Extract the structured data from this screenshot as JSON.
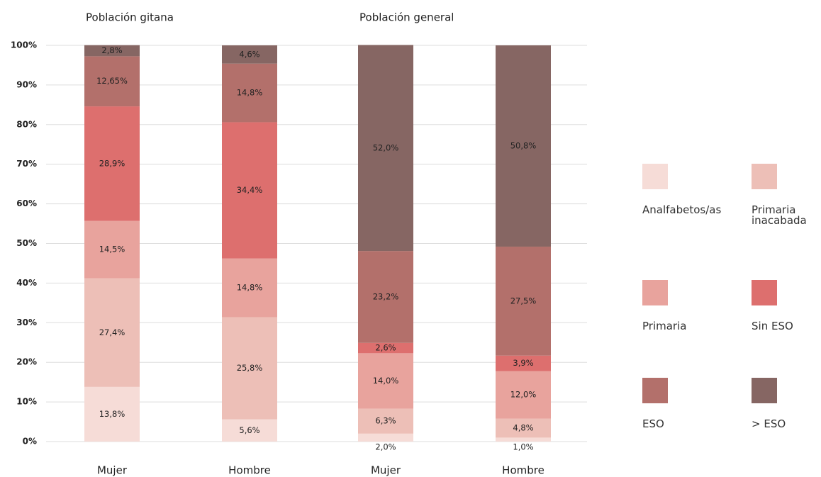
{
  "chart_data": {
    "type": "stacked_bar",
    "groups": [
      {
        "label": "Población gitana",
        "categories": [
          0,
          1
        ]
      },
      {
        "label": "Población general",
        "categories": [
          2,
          3
        ]
      }
    ],
    "categories": [
      "Mujer",
      "Hombre",
      "Mujer",
      "Hombre"
    ],
    "series": [
      {
        "name": "Analfabetos/as",
        "color": "#f6dcd7",
        "values": [
          13.8,
          5.6,
          2.0,
          1.0
        ],
        "value_labels": [
          "13,8%",
          "5,6%",
          "2,0%",
          "1,0%"
        ]
      },
      {
        "name": "Primaria inacabada",
        "color": "#edbfb7",
        "values": [
          27.4,
          25.8,
          6.3,
          4.8
        ],
        "value_labels": [
          "27,4%",
          "25,8%",
          "6,3%",
          "4,8%"
        ]
      },
      {
        "name": "Primaria",
        "color": "#e8a39d",
        "values": [
          14.5,
          14.8,
          14.0,
          12.0
        ],
        "value_labels": [
          "14,5%",
          "14,8%",
          "14,0%",
          "12,0%"
        ]
      },
      {
        "name": "Sin ESO",
        "color": "#dd6f6e",
        "values": [
          28.9,
          34.4,
          2.6,
          3.9
        ],
        "value_labels": [
          "28,9%",
          "34,4%",
          "2,6%",
          "3,9%"
        ]
      },
      {
        "name": "ESO",
        "color": "#b3706b",
        "values": [
          12.65,
          14.8,
          23.2,
          27.5
        ],
        "value_labels": [
          "12,65%",
          "14,8%",
          "23,2%",
          "27,5%"
        ]
      },
      {
        "name": "> ESO",
        "color": "#866663",
        "values": [
          2.8,
          4.6,
          52.0,
          50.8
        ],
        "value_labels": [
          "2,8%",
          "4,6%",
          "52,0%",
          "50,8%"
        ]
      }
    ],
    "ylim": [
      0,
      100
    ],
    "yticks": [
      {
        "value": 0,
        "label": "0%"
      },
      {
        "value": 10,
        "label": "10%"
      },
      {
        "value": 20,
        "label": "20%"
      },
      {
        "value": 30,
        "label": "30%"
      },
      {
        "value": 40,
        "label": "40%"
      },
      {
        "value": 50,
        "label": "50%"
      },
      {
        "value": 60,
        "label": "60%"
      },
      {
        "value": 70,
        "label": "70%"
      },
      {
        "value": 80,
        "label": "80%"
      },
      {
        "value": 90,
        "label": "90%"
      },
      {
        "value": 100,
        "label": "100%"
      }
    ],
    "grid": true,
    "legend": "right"
  }
}
